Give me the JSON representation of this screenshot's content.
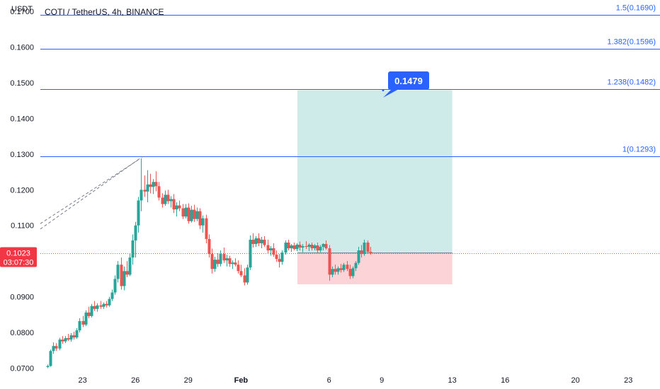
{
  "chart_data": {
    "type": "candlestick",
    "title": "COTI / TetherUS, 4h, BINANCE",
    "currency_label": "USDT",
    "y_ticks": [
      "0.1700",
      "0.1600",
      "0.1500",
      "0.1400",
      "0.1300",
      "0.1200",
      "0.1100",
      "0.1000",
      "0.0900",
      "0.0800",
      "0.0700"
    ],
    "y_tick_values": [
      0.17,
      0.16,
      0.15,
      0.14,
      0.13,
      0.12,
      0.11,
      0.1,
      0.09,
      0.08,
      0.07
    ],
    "ylim": [
      0.0697,
      0.1732
    ],
    "x_ticks": [
      {
        "label": "23",
        "day": 23
      },
      {
        "label": "26",
        "day": 26
      },
      {
        "label": "29",
        "day": 29
      },
      {
        "label": "Feb",
        "day": 32
      },
      {
        "label": "6",
        "day": 37
      },
      {
        "label": "9",
        "day": 40
      },
      {
        "label": "13",
        "day": 44
      },
      {
        "label": "16",
        "day": 47
      },
      {
        "label": "20",
        "day": 51
      },
      {
        "label": "23",
        "day": 54
      }
    ],
    "xlim": [
      20.6,
      55.8
    ],
    "fib_levels": [
      {
        "label": "1.5(0.1690)",
        "value": 0.169
      },
      {
        "label": "1.382(0.1596)",
        "value": 0.1596
      },
      {
        "label": "1.238(0.1482)",
        "value": 0.1482
      },
      {
        "label": "1(0.1293)",
        "value": 0.1293
      }
    ],
    "target_label": "0.1479",
    "target_value": 0.1479,
    "last_price_label": "0.1023",
    "last_price_value": 0.1023,
    "countdown_label": "03:07:30",
    "position": {
      "x_start": 35.2,
      "x_end": 44.0,
      "entry": 0.1023,
      "target": 0.1479,
      "stop": 0.0935
    },
    "trend_lines": [
      {
        "x1": 20.6,
        "y1": 0.109,
        "x2": 26.4,
        "y2": 0.1293
      },
      {
        "x1": 20.6,
        "y1": 0.1105,
        "x2": 26.2,
        "y2": 0.1285
      }
    ],
    "candles": [
      [
        21.0,
        0.0703,
        0.071,
        0.07,
        0.0706
      ],
      [
        21.17,
        0.0706,
        0.0752,
        0.0704,
        0.0748
      ],
      [
        21.33,
        0.0748,
        0.0772,
        0.074,
        0.0762
      ],
      [
        21.5,
        0.0762,
        0.077,
        0.0748,
        0.0755
      ],
      [
        21.67,
        0.0755,
        0.0785,
        0.075,
        0.078
      ],
      [
        21.83,
        0.078,
        0.079,
        0.0768,
        0.0775
      ],
      [
        22.0,
        0.0775,
        0.079,
        0.077,
        0.0784
      ],
      [
        22.17,
        0.0784,
        0.0796,
        0.0776,
        0.078
      ],
      [
        22.33,
        0.078,
        0.0798,
        0.0774,
        0.0792
      ],
      [
        22.5,
        0.0792,
        0.0802,
        0.078,
        0.0786
      ],
      [
        22.67,
        0.0786,
        0.0812,
        0.0782,
        0.0806
      ],
      [
        22.83,
        0.0806,
        0.084,
        0.08,
        0.0832
      ],
      [
        23.0,
        0.0832,
        0.0846,
        0.0815,
        0.0822
      ],
      [
        23.17,
        0.0822,
        0.0862,
        0.0818,
        0.0856
      ],
      [
        23.33,
        0.0856,
        0.0872,
        0.084,
        0.0846
      ],
      [
        23.5,
        0.0846,
        0.088,
        0.0842,
        0.0874
      ],
      [
        23.67,
        0.0874,
        0.0888,
        0.086,
        0.0866
      ],
      [
        23.83,
        0.0866,
        0.0882,
        0.0858,
        0.0876
      ],
      [
        24.0,
        0.0876,
        0.0888,
        0.0866,
        0.0872
      ],
      [
        24.17,
        0.0872,
        0.0884,
        0.0866,
        0.088
      ],
      [
        24.33,
        0.088,
        0.0888,
        0.087,
        0.0876
      ],
      [
        24.5,
        0.0876,
        0.09,
        0.0872,
        0.0894
      ],
      [
        24.67,
        0.0894,
        0.092,
        0.0888,
        0.0912
      ],
      [
        24.83,
        0.0912,
        0.096,
        0.0906,
        0.095
      ],
      [
        25.0,
        0.095,
        0.1,
        0.094,
        0.099
      ],
      [
        25.17,
        0.099,
        0.101,
        0.092,
        0.093
      ],
      [
        25.33,
        0.093,
        0.0985,
        0.0918,
        0.0972
      ],
      [
        25.5,
        0.0972,
        0.1,
        0.0955,
        0.0962
      ],
      [
        25.67,
        0.0962,
        0.1022,
        0.0958,
        0.101
      ],
      [
        25.83,
        0.101,
        0.1075,
        0.099,
        0.1058
      ],
      [
        26.0,
        0.1058,
        0.111,
        0.101,
        0.11
      ],
      [
        26.17,
        0.11,
        0.118,
        0.108,
        0.117
      ],
      [
        26.33,
        0.117,
        0.1288,
        0.114,
        0.12
      ],
      [
        26.5,
        0.12,
        0.124,
        0.118,
        0.1195
      ],
      [
        26.67,
        0.1195,
        0.1255,
        0.1165,
        0.1215
      ],
      [
        26.83,
        0.1215,
        0.1245,
        0.119,
        0.1208
      ],
      [
        27.0,
        0.1208,
        0.123,
        0.1188,
        0.1222
      ],
      [
        27.17,
        0.1222,
        0.1252,
        0.1196,
        0.121
      ],
      [
        27.33,
        0.121,
        0.1222,
        0.117,
        0.1178
      ],
      [
        27.5,
        0.1178,
        0.119,
        0.115,
        0.116
      ],
      [
        27.67,
        0.116,
        0.1198,
        0.1155,
        0.1186
      ],
      [
        27.83,
        0.1186,
        0.12,
        0.116,
        0.1168
      ],
      [
        28.0,
        0.1168,
        0.1182,
        0.115,
        0.1174
      ],
      [
        28.17,
        0.1174,
        0.1188,
        0.1135,
        0.1145
      ],
      [
        28.33,
        0.1145,
        0.1165,
        0.1125,
        0.1156
      ],
      [
        28.5,
        0.1156,
        0.117,
        0.114,
        0.1148
      ],
      [
        28.67,
        0.1148,
        0.116,
        0.1118,
        0.1125
      ],
      [
        28.83,
        0.1125,
        0.116,
        0.112,
        0.115
      ],
      [
        29.0,
        0.115,
        0.1162,
        0.1105,
        0.1112
      ],
      [
        29.17,
        0.1112,
        0.1155,
        0.1108,
        0.1144
      ],
      [
        29.33,
        0.1144,
        0.1158,
        0.111,
        0.1118
      ],
      [
        29.5,
        0.1118,
        0.115,
        0.1112,
        0.114
      ],
      [
        29.67,
        0.114,
        0.1148,
        0.109,
        0.11
      ],
      [
        29.83,
        0.11,
        0.1128,
        0.108,
        0.112
      ],
      [
        30.0,
        0.112,
        0.113,
        0.105,
        0.1062
      ],
      [
        30.17,
        0.1062,
        0.1075,
        0.101,
        0.102
      ],
      [
        30.33,
        0.102,
        0.1035,
        0.0965,
        0.0978
      ],
      [
        30.5,
        0.0978,
        0.1012,
        0.097,
        0.1004
      ],
      [
        30.67,
        0.1004,
        0.1022,
        0.0984,
        0.0992
      ],
      [
        30.83,
        0.0992,
        0.103,
        0.0985,
        0.102
      ],
      [
        31.0,
        0.102,
        0.1038,
        0.0995,
        0.1002
      ],
      [
        31.17,
        0.1002,
        0.1018,
        0.0985,
        0.1008
      ],
      [
        31.33,
        0.1008,
        0.1015,
        0.0984,
        0.0992
      ],
      [
        31.5,
        0.0992,
        0.1002,
        0.0978,
        0.0996
      ],
      [
        31.67,
        0.0996,
        0.1008,
        0.0985,
        0.099
      ],
      [
        31.83,
        0.099,
        0.1002,
        0.0965,
        0.0972
      ],
      [
        32.0,
        0.0972,
        0.099,
        0.0955,
        0.096
      ],
      [
        32.17,
        0.096,
        0.098,
        0.0932,
        0.094
      ],
      [
        32.33,
        0.094,
        0.099,
        0.0934,
        0.0982
      ],
      [
        32.5,
        0.0982,
        0.1072,
        0.0975,
        0.106
      ],
      [
        32.67,
        0.106,
        0.1078,
        0.1038,
        0.1048
      ],
      [
        32.83,
        0.1048,
        0.107,
        0.104,
        0.1064
      ],
      [
        33.0,
        0.1064,
        0.1078,
        0.1042,
        0.105
      ],
      [
        33.17,
        0.105,
        0.1068,
        0.1036,
        0.106
      ],
      [
        33.33,
        0.106,
        0.107,
        0.104,
        0.1045
      ],
      [
        33.5,
        0.1045,
        0.106,
        0.102,
        0.103
      ],
      [
        33.67,
        0.103,
        0.1042,
        0.1015,
        0.1036
      ],
      [
        33.83,
        0.1036,
        0.105,
        0.1012,
        0.1018
      ],
      [
        34.0,
        0.1018,
        0.103,
        0.0998,
        0.1006
      ],
      [
        34.17,
        0.1006,
        0.102,
        0.0982,
        0.0998
      ],
      [
        34.33,
        0.0998,
        0.103,
        0.099,
        0.1024
      ],
      [
        34.5,
        0.1024,
        0.1058,
        0.1018,
        0.1052
      ],
      [
        34.67,
        0.1052,
        0.106,
        0.103,
        0.1036
      ],
      [
        34.83,
        0.1036,
        0.1048,
        0.1026,
        0.1044
      ],
      [
        35.0,
        0.1044,
        0.1052,
        0.103,
        0.1034
      ],
      [
        35.17,
        0.1034,
        0.105,
        0.1028,
        0.1046
      ],
      [
        35.33,
        0.1046,
        0.1055,
        0.103,
        0.1038
      ],
      [
        35.5,
        0.1038,
        0.1048,
        0.1025,
        0.1042
      ],
      [
        35.67,
        0.1042,
        0.1056,
        0.1034,
        0.104
      ],
      [
        35.83,
        0.104,
        0.105,
        0.1028,
        0.1046
      ],
      [
        36.0,
        0.1046,
        0.1052,
        0.103,
        0.1036
      ],
      [
        36.17,
        0.1036,
        0.1048,
        0.103,
        0.1044
      ],
      [
        36.33,
        0.1044,
        0.1052,
        0.1022,
        0.103
      ],
      [
        36.5,
        0.103,
        0.1045,
        0.1025,
        0.104
      ],
      [
        36.67,
        0.104,
        0.105,
        0.103,
        0.1048
      ],
      [
        36.83,
        0.1048,
        0.1058,
        0.1032,
        0.1036
      ],
      [
        37.0,
        0.1036,
        0.1045,
        0.0945,
        0.0962
      ],
      [
        37.17,
        0.0962,
        0.0985,
        0.0955,
        0.0978
      ],
      [
        37.33,
        0.0978,
        0.099,
        0.0962,
        0.097
      ],
      [
        37.5,
        0.097,
        0.0985,
        0.0962,
        0.098
      ],
      [
        37.67,
        0.098,
        0.0992,
        0.0968,
        0.0975
      ],
      [
        37.83,
        0.0975,
        0.0995,
        0.097,
        0.099
      ],
      [
        38.0,
        0.099,
        0.1,
        0.0972,
        0.0978
      ],
      [
        38.17,
        0.0978,
        0.099,
        0.095,
        0.0958
      ],
      [
        38.33,
        0.0958,
        0.0985,
        0.0952,
        0.098
      ],
      [
        38.5,
        0.098,
        0.1,
        0.0972,
        0.0995
      ],
      [
        38.67,
        0.0995,
        0.104,
        0.099,
        0.103
      ],
      [
        38.83,
        0.103,
        0.1045,
        0.101,
        0.102
      ],
      [
        39.0,
        0.102,
        0.106,
        0.1015,
        0.1052
      ],
      [
        39.17,
        0.1052,
        0.1058,
        0.102,
        0.1026
      ],
      [
        39.33,
        0.1026,
        0.104,
        0.1018,
        0.1023
      ]
    ]
  }
}
